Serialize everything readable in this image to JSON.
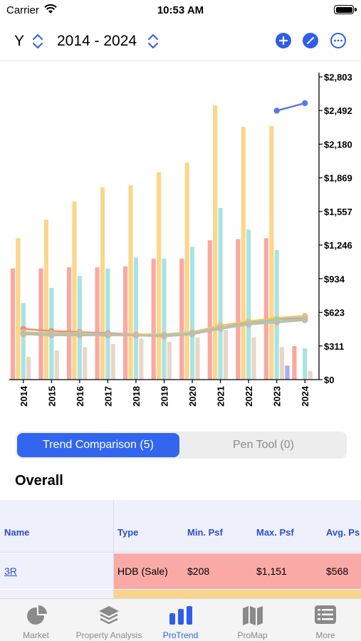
{
  "status_bar": {
    "carrier": "Carrier",
    "time": "10:53 AM"
  },
  "header": {
    "period_type": "Y",
    "range": "2014 - 2024",
    "icons": [
      "add-icon",
      "edit-icon",
      "more-icon"
    ]
  },
  "chart_data": {
    "type": "bar",
    "categories": [
      "2014",
      "2015",
      "2016",
      "2017",
      "2018",
      "2019",
      "2020",
      "2021",
      "2022",
      "2023",
      "2024"
    ],
    "y_tick_labels": [
      "$2,803",
      "$2,492",
      "$2,180",
      "$1,869",
      "$1,557",
      "$1,246",
      "$934",
      "$623",
      "$311",
      "$0"
    ],
    "ylim": [
      0,
      2803
    ],
    "bar_series": [
      {
        "color": "#f9a8a2",
        "values": [
          1030,
          1030,
          1040,
          1040,
          1050,
          1120,
          1120,
          1290,
          1300,
          1310,
          310
        ]
      },
      {
        "color": "#fbd68b",
        "values": [
          1310,
          1480,
          1650,
          1780,
          1800,
          1920,
          2010,
          2540,
          2340,
          2350,
          0
        ]
      },
      {
        "color": "#a9e3e2",
        "values": [
          710,
          850,
          960,
          1030,
          1130,
          1120,
          1230,
          1590,
          1390,
          1200,
          290
        ]
      },
      {
        "color": "#ead6c7",
        "values": [
          210,
          270,
          300,
          330,
          380,
          350,
          390,
          460,
          390,
          300,
          80
        ]
      },
      {
        "color": "#a8acf0",
        "values": [
          0,
          0,
          0,
          0,
          0,
          0,
          0,
          0,
          0,
          130,
          0
        ]
      }
    ],
    "line_series": [
      {
        "color": "#f08b80",
        "values": [
          470,
          450,
          440,
          430,
          420,
          410,
          430,
          500,
          530,
          560,
          570
        ]
      },
      {
        "color": "#f5c260",
        "values": [
          440,
          430,
          430,
          420,
          420,
          420,
          440,
          500,
          540,
          570,
          590
        ]
      },
      {
        "color": "#7fd6d2",
        "values": [
          430,
          420,
          420,
          420,
          410,
          410,
          430,
          480,
          520,
          550,
          560
        ]
      },
      {
        "color": "#c9b9a6",
        "values": [
          420,
          410,
          410,
          410,
          410,
          400,
          420,
          470,
          510,
          530,
          550
        ]
      },
      {
        "color": "#5a78e6",
        "values": [
          null,
          null,
          null,
          null,
          null,
          null,
          null,
          null,
          null,
          2490,
          2560
        ]
      }
    ],
    "grid": false,
    "y_axis_position": "right"
  },
  "segmented": {
    "active_label": "Trend Comparison (5)",
    "inactive_label": "Pen Tool (0)"
  },
  "section_title": "Overall",
  "table": {
    "headers": {
      "name": "Name",
      "type": "Type",
      "min": "Min. Psf",
      "max": "Max. Psf",
      "avg": "Avg. Ps"
    },
    "rows": [
      {
        "name": "3R",
        "type": "HDB (Sale)",
        "min": "$208",
        "max": "$1,151",
        "avg": "$568",
        "color": "#f9aaa6"
      }
    ]
  },
  "tabs": [
    {
      "label": "Market",
      "icon": "pie-chart-icon"
    },
    {
      "label": "Property Analysis",
      "icon": "layers-icon"
    },
    {
      "label": "ProTrend",
      "icon": "bar-chart-icon",
      "active": true
    },
    {
      "label": "ProMap",
      "icon": "map-icon"
    },
    {
      "label": "More",
      "icon": "list-icon"
    }
  ],
  "colors": {
    "accent": "#2f5fe8",
    "tab_inactive": "#8a8a8a"
  }
}
